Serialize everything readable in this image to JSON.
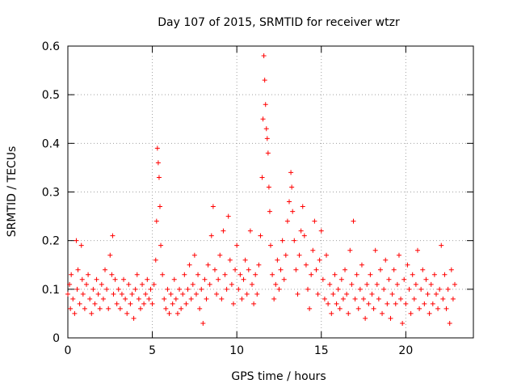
{
  "chart_data": {
    "type": "scatter",
    "title": "Day 107 of 2015, SRMTID for receiver wtzr",
    "xlabel": "GPS time / hours",
    "ylabel": "SRMTID / TECUs",
    "xlim": [
      0,
      24
    ],
    "ylim": [
      0,
      0.6
    ],
    "x_ticks": [
      0,
      5,
      10,
      15,
      20
    ],
    "x_tick_labels": [
      "0",
      "5",
      "10",
      "15",
      "20"
    ],
    "y_ticks": [
      0,
      0.1,
      0.2,
      0.3,
      0.4,
      0.5,
      0.6
    ],
    "y_tick_labels": [
      "0",
      "0.1",
      "0.2",
      "0.3",
      "0.4",
      "0.5",
      "0.6"
    ],
    "grid": true,
    "marker": "plus",
    "marker_color": "#ff0000",
    "series": [
      {
        "name": "SRMTID",
        "points": [
          [
            0.0,
            0.09
          ],
          [
            0.1,
            0.11
          ],
          [
            0.15,
            0.06
          ],
          [
            0.2,
            0.13
          ],
          [
            0.3,
            0.08
          ],
          [
            0.4,
            0.05
          ],
          [
            0.5,
            0.2
          ],
          [
            0.55,
            0.1
          ],
          [
            0.6,
            0.14
          ],
          [
            0.7,
            0.07
          ],
          [
            0.8,
            0.19
          ],
          [
            0.85,
            0.12
          ],
          [
            0.9,
            0.09
          ],
          [
            1.0,
            0.06
          ],
          [
            1.1,
            0.11
          ],
          [
            1.2,
            0.13
          ],
          [
            1.3,
            0.08
          ],
          [
            1.4,
            0.05
          ],
          [
            1.5,
            0.1
          ],
          [
            1.6,
            0.07
          ],
          [
            1.7,
            0.12
          ],
          [
            1.8,
            0.09
          ],
          [
            1.9,
            0.06
          ],
          [
            2.0,
            0.11
          ],
          [
            2.1,
            0.08
          ],
          [
            2.2,
            0.14
          ],
          [
            2.3,
            0.1
          ],
          [
            2.4,
            0.06
          ],
          [
            2.5,
            0.17
          ],
          [
            2.6,
            0.13
          ],
          [
            2.65,
            0.21
          ],
          [
            2.7,
            0.09
          ],
          [
            2.8,
            0.12
          ],
          [
            2.9,
            0.07
          ],
          [
            3.0,
            0.1
          ],
          [
            3.1,
            0.06
          ],
          [
            3.2,
            0.09
          ],
          [
            3.3,
            0.12
          ],
          [
            3.4,
            0.08
          ],
          [
            3.5,
            0.05
          ],
          [
            3.6,
            0.11
          ],
          [
            3.7,
            0.07
          ],
          [
            3.8,
            0.09
          ],
          [
            3.9,
            0.04
          ],
          [
            4.0,
            0.1
          ],
          [
            4.1,
            0.13
          ],
          [
            4.2,
            0.08
          ],
          [
            4.3,
            0.06
          ],
          [
            4.4,
            0.11
          ],
          [
            4.5,
            0.07
          ],
          [
            4.6,
            0.09
          ],
          [
            4.7,
            0.12
          ],
          [
            4.8,
            0.08
          ],
          [
            4.9,
            0.1
          ],
          [
            5.0,
            0.07
          ],
          [
            5.1,
            0.11
          ],
          [
            5.2,
            0.16
          ],
          [
            5.25,
            0.24
          ],
          [
            5.3,
            0.39
          ],
          [
            5.35,
            0.36
          ],
          [
            5.4,
            0.33
          ],
          [
            5.45,
            0.27
          ],
          [
            5.5,
            0.19
          ],
          [
            5.6,
            0.13
          ],
          [
            5.7,
            0.08
          ],
          [
            5.8,
            0.06
          ],
          [
            5.9,
            0.1
          ],
          [
            6.0,
            0.05
          ],
          [
            6.1,
            0.09
          ],
          [
            6.2,
            0.07
          ],
          [
            6.3,
            0.12
          ],
          [
            6.4,
            0.08
          ],
          [
            6.5,
            0.05
          ],
          [
            6.6,
            0.1
          ],
          [
            6.7,
            0.06
          ],
          [
            6.8,
            0.09
          ],
          [
            6.9,
            0.13
          ],
          [
            7.0,
            0.07
          ],
          [
            7.1,
            0.1
          ],
          [
            7.2,
            0.15
          ],
          [
            7.3,
            0.08
          ],
          [
            7.4,
            0.11
          ],
          [
            7.5,
            0.17
          ],
          [
            7.6,
            0.09
          ],
          [
            7.7,
            0.13
          ],
          [
            7.8,
            0.06
          ],
          [
            7.9,
            0.1
          ],
          [
            8.0,
            0.03
          ],
          [
            8.1,
            0.12
          ],
          [
            8.2,
            0.08
          ],
          [
            8.3,
            0.15
          ],
          [
            8.4,
            0.11
          ],
          [
            8.5,
            0.21
          ],
          [
            8.6,
            0.27
          ],
          [
            8.7,
            0.14
          ],
          [
            8.8,
            0.09
          ],
          [
            8.9,
            0.12
          ],
          [
            9.0,
            0.17
          ],
          [
            9.1,
            0.08
          ],
          [
            9.2,
            0.22
          ],
          [
            9.3,
            0.13
          ],
          [
            9.4,
            0.1
          ],
          [
            9.5,
            0.25
          ],
          [
            9.6,
            0.16
          ],
          [
            9.7,
            0.11
          ],
          [
            9.8,
            0.07
          ],
          [
            9.9,
            0.14
          ],
          [
            10.0,
            0.19
          ],
          [
            10.1,
            0.1
          ],
          [
            10.2,
            0.13
          ],
          [
            10.3,
            0.08
          ],
          [
            10.4,
            0.12
          ],
          [
            10.5,
            0.16
          ],
          [
            10.6,
            0.09
          ],
          [
            10.7,
            0.14
          ],
          [
            10.8,
            0.22
          ],
          [
            10.9,
            0.11
          ],
          [
            11.0,
            0.07
          ],
          [
            11.1,
            0.13
          ],
          [
            11.2,
            0.09
          ],
          [
            11.3,
            0.15
          ],
          [
            11.4,
            0.21
          ],
          [
            11.5,
            0.33
          ],
          [
            11.55,
            0.45
          ],
          [
            11.6,
            0.58
          ],
          [
            11.65,
            0.53
          ],
          [
            11.7,
            0.48
          ],
          [
            11.75,
            0.43
          ],
          [
            11.8,
            0.41
          ],
          [
            11.85,
            0.38
          ],
          [
            11.9,
            0.31
          ],
          [
            11.95,
            0.26
          ],
          [
            12.0,
            0.19
          ],
          [
            12.1,
            0.13
          ],
          [
            12.2,
            0.08
          ],
          [
            12.3,
            0.11
          ],
          [
            12.4,
            0.16
          ],
          [
            12.5,
            0.1
          ],
          [
            12.6,
            0.14
          ],
          [
            12.7,
            0.2
          ],
          [
            12.8,
            0.12
          ],
          [
            12.9,
            0.17
          ],
          [
            13.0,
            0.24
          ],
          [
            13.1,
            0.28
          ],
          [
            13.2,
            0.34
          ],
          [
            13.25,
            0.31
          ],
          [
            13.3,
            0.26
          ],
          [
            13.4,
            0.2
          ],
          [
            13.5,
            0.14
          ],
          [
            13.6,
            0.09
          ],
          [
            13.7,
            0.17
          ],
          [
            13.8,
            0.22
          ],
          [
            13.9,
            0.27
          ],
          [
            14.0,
            0.21
          ],
          [
            14.1,
            0.15
          ],
          [
            14.2,
            0.1
          ],
          [
            14.3,
            0.06
          ],
          [
            14.4,
            0.13
          ],
          [
            14.5,
            0.18
          ],
          [
            14.6,
            0.24
          ],
          [
            14.7,
            0.14
          ],
          [
            14.8,
            0.09
          ],
          [
            14.9,
            0.16
          ],
          [
            15.0,
            0.22
          ],
          [
            15.1,
            0.12
          ],
          [
            15.2,
            0.08
          ],
          [
            15.3,
            0.17
          ],
          [
            15.4,
            0.07
          ],
          [
            15.5,
            0.11
          ],
          [
            15.6,
            0.05
          ],
          [
            15.7,
            0.09
          ],
          [
            15.8,
            0.13
          ],
          [
            15.9,
            0.07
          ],
          [
            16.0,
            0.1
          ],
          [
            16.1,
            0.06
          ],
          [
            16.2,
            0.12
          ],
          [
            16.3,
            0.08
          ],
          [
            16.4,
            0.14
          ],
          [
            16.5,
            0.09
          ],
          [
            16.6,
            0.05
          ],
          [
            16.7,
            0.18
          ],
          [
            16.8,
            0.11
          ],
          [
            16.9,
            0.24
          ],
          [
            17.0,
            0.08
          ],
          [
            17.1,
            0.13
          ],
          [
            17.2,
            0.06
          ],
          [
            17.3,
            0.1
          ],
          [
            17.4,
            0.15
          ],
          [
            17.5,
            0.08
          ],
          [
            17.6,
            0.04
          ],
          [
            17.7,
            0.11
          ],
          [
            17.8,
            0.07
          ],
          [
            17.9,
            0.13
          ],
          [
            18.0,
            0.09
          ],
          [
            18.1,
            0.06
          ],
          [
            18.2,
            0.18
          ],
          [
            18.3,
            0.11
          ],
          [
            18.4,
            0.08
          ],
          [
            18.5,
            0.14
          ],
          [
            18.6,
            0.05
          ],
          [
            18.7,
            0.1
          ],
          [
            18.8,
            0.16
          ],
          [
            18.9,
            0.07
          ],
          [
            19.0,
            0.12
          ],
          [
            19.1,
            0.04
          ],
          [
            19.2,
            0.09
          ],
          [
            19.3,
            0.14
          ],
          [
            19.4,
            0.07
          ],
          [
            19.5,
            0.11
          ],
          [
            19.6,
            0.17
          ],
          [
            19.7,
            0.08
          ],
          [
            19.8,
            0.03
          ],
          [
            19.9,
            0.12
          ],
          [
            20.0,
            0.07
          ],
          [
            20.1,
            0.15
          ],
          [
            20.2,
            0.1
          ],
          [
            20.3,
            0.05
          ],
          [
            20.4,
            0.13
          ],
          [
            20.5,
            0.08
          ],
          [
            20.6,
            0.11
          ],
          [
            20.7,
            0.18
          ],
          [
            20.8,
            0.06
          ],
          [
            20.9,
            0.1
          ],
          [
            21.0,
            0.14
          ],
          [
            21.1,
            0.07
          ],
          [
            21.2,
            0.12
          ],
          [
            21.3,
            0.09
          ],
          [
            21.4,
            0.05
          ],
          [
            21.5,
            0.11
          ],
          [
            21.6,
            0.07
          ],
          [
            21.7,
            0.13
          ],
          [
            21.8,
            0.09
          ],
          [
            21.9,
            0.06
          ],
          [
            22.0,
            0.1
          ],
          [
            22.1,
            0.19
          ],
          [
            22.2,
            0.08
          ],
          [
            22.3,
            0.13
          ],
          [
            22.4,
            0.06
          ],
          [
            22.5,
            0.1
          ],
          [
            22.6,
            0.03
          ],
          [
            22.7,
            0.14
          ],
          [
            22.8,
            0.08
          ],
          [
            22.9,
            0.11
          ]
        ]
      }
    ]
  }
}
